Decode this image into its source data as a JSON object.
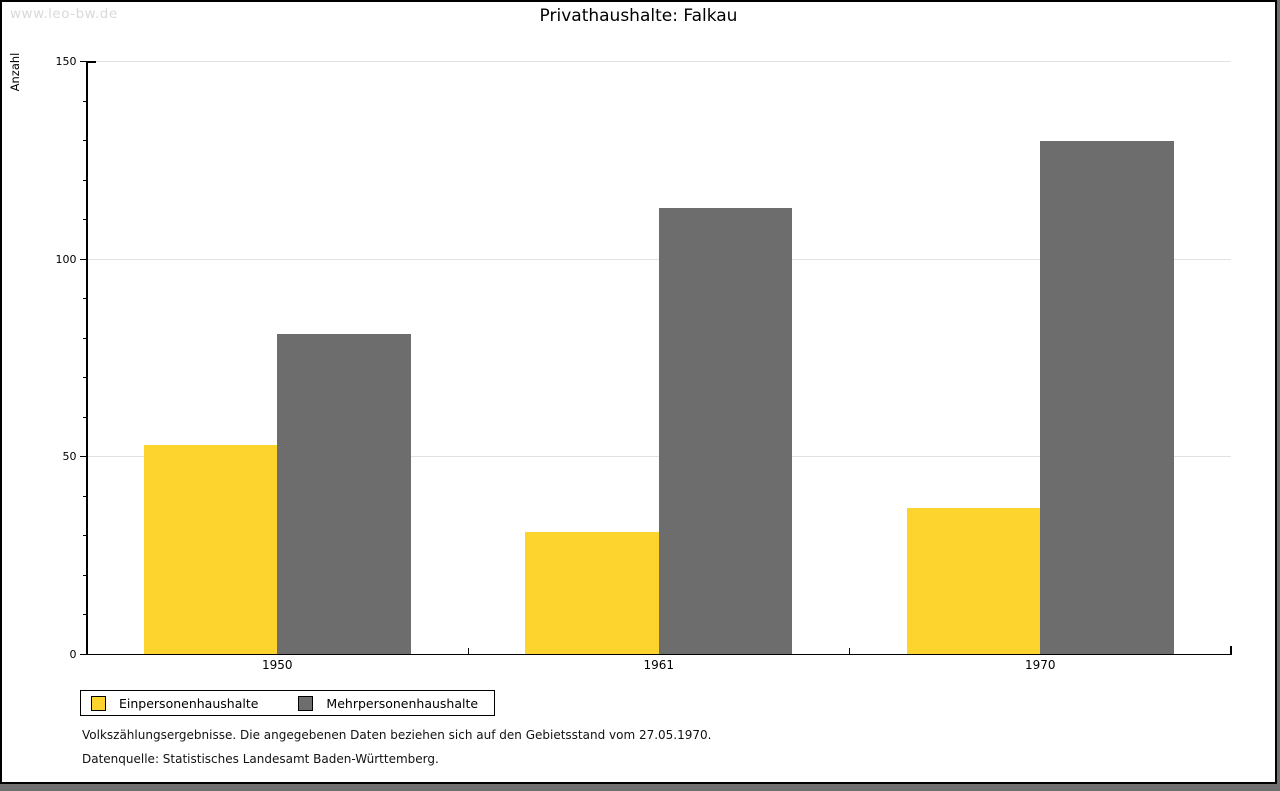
{
  "watermark": "www.leo-bw.de",
  "title": "Privathaushalte: Falkau",
  "chart_data": {
    "type": "bar",
    "title": "Privathaushalte: Falkau",
    "xlabel": "",
    "ylabel": "Anzahl",
    "categories": [
      "1950",
      "1961",
      "1970"
    ],
    "series": [
      {
        "name": "Einpersonenhaushalte",
        "color": "#fcd42d",
        "values": [
          53,
          31,
          37
        ]
      },
      {
        "name": "Mehrpersonenhaushalte",
        "color": "#6d6d6d",
        "values": [
          81,
          113,
          130
        ]
      }
    ],
    "ylim": [
      0,
      150
    ],
    "yticks": [
      0,
      50,
      100,
      150
    ],
    "minor_tick_step": 10,
    "grid": true,
    "gridline_values": [
      50,
      100,
      150
    ],
    "legend_position": "bottom-left"
  },
  "footnotes": {
    "line1": "Volkszählungsergebnisse. Die angegebenen Daten beziehen sich auf den Gebietsstand vom 27.05.1970.",
    "line2": "Datenquelle: Statistisches Landesamt Baden-Württemberg."
  }
}
